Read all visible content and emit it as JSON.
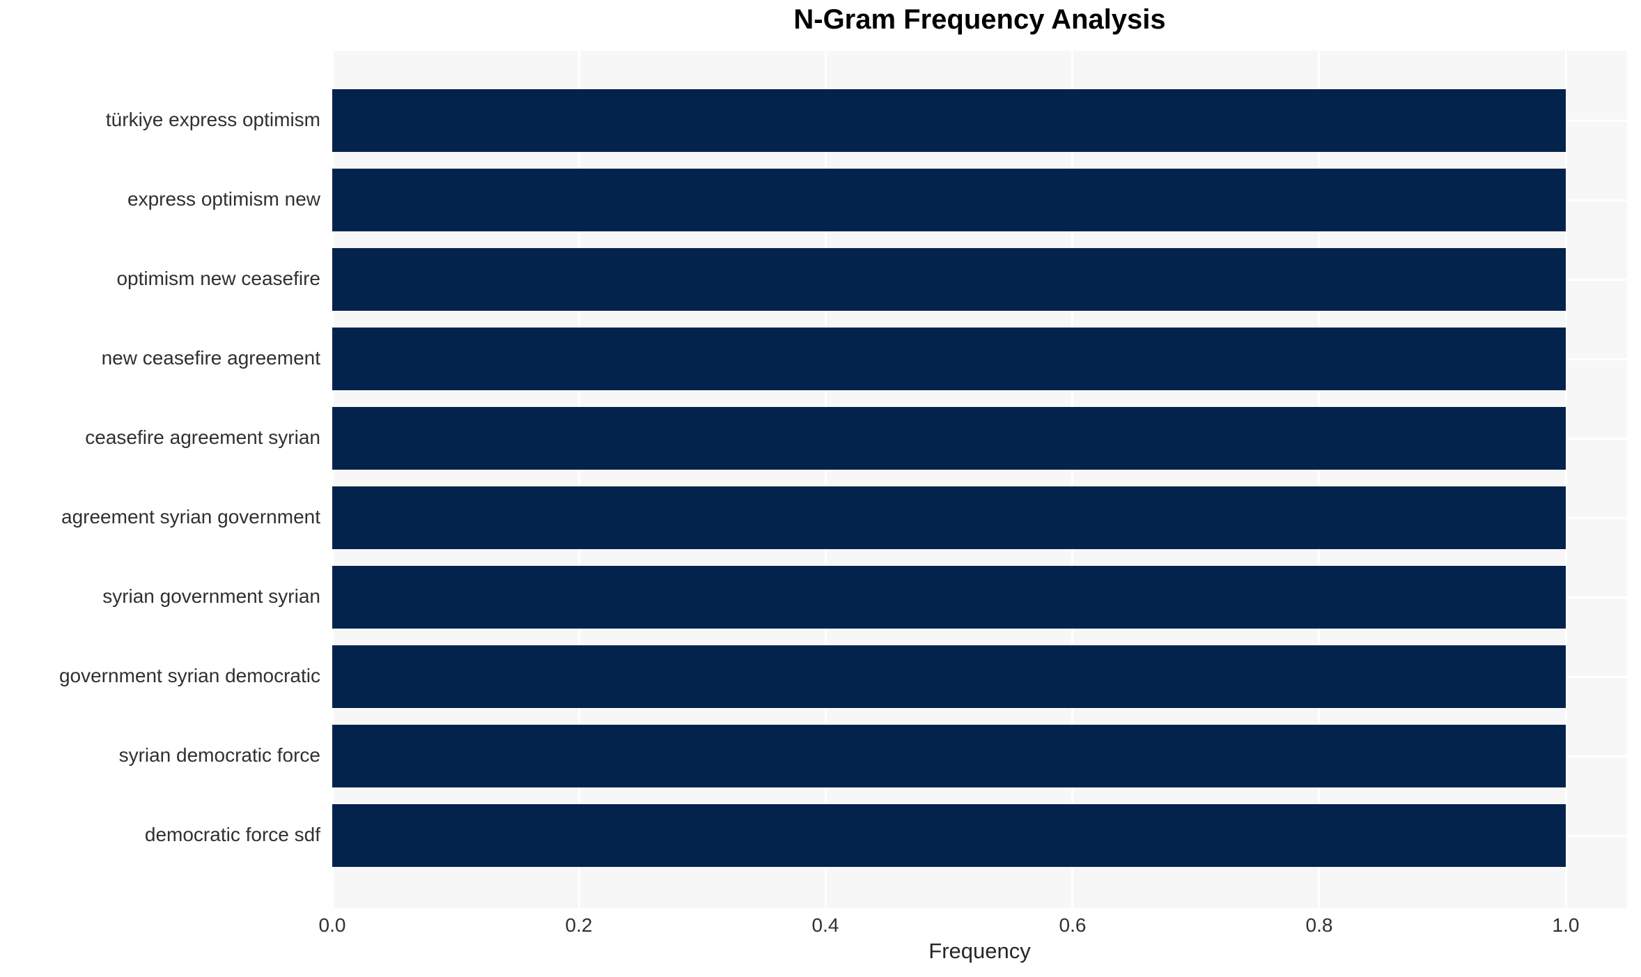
{
  "title": "N-Gram Frequency Analysis",
  "xlabel": "Frequency",
  "colors": {
    "bar": "#03234d",
    "plot_background": "#f7f7f7",
    "gridline": "#ffffff",
    "figure_background": "#ffffff",
    "title_text": "#000000",
    "tick_text": "#303030"
  },
  "chart_data": {
    "type": "bar",
    "orientation": "horizontal",
    "title": "N-Gram Frequency Analysis",
    "xlabel": "Frequency",
    "ylabel": "",
    "categories": [
      "türkiye express optimism",
      "express optimism new",
      "optimism new ceasefire",
      "new ceasefire agreement",
      "ceasefire agreement syrian",
      "agreement syrian government",
      "syrian government syrian",
      "government syrian democratic",
      "syrian democratic force",
      "democratic force sdf"
    ],
    "values": [
      1.0,
      1.0,
      1.0,
      1.0,
      1.0,
      1.0,
      1.0,
      1.0,
      1.0,
      1.0
    ],
    "xlim": [
      0.0,
      1.0
    ],
    "x_ticks": [
      0.0,
      0.2,
      0.4,
      0.6,
      0.8,
      1.0
    ],
    "x_tick_labels": [
      "0.0",
      "0.2",
      "0.4",
      "0.6",
      "0.8",
      "1.0"
    ],
    "grid": true,
    "legend": false
  }
}
